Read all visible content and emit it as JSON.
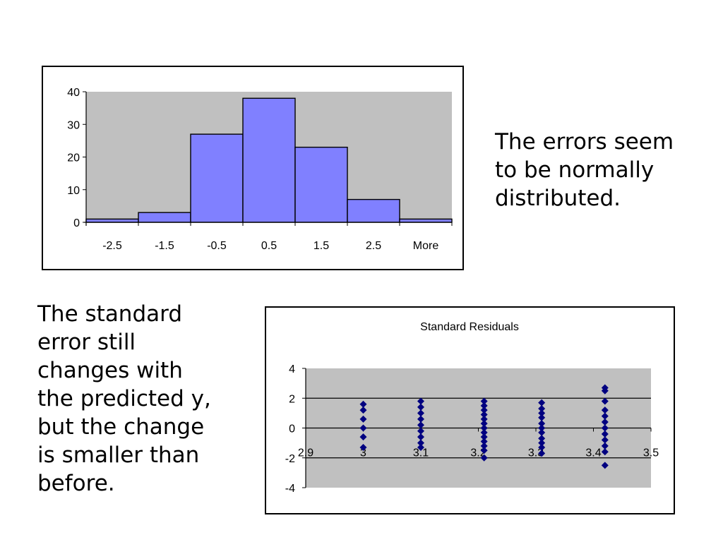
{
  "notes": {
    "right": [
      "The errors seem",
      "to be normally",
      "distributed."
    ],
    "left": [
      "The standard",
      "error still",
      "changes with",
      "the predicted y,",
      "but the change",
      "is smaller than",
      "before."
    ]
  },
  "colors": {
    "plot_area": "#c0c0c0",
    "bar_fill": "#8080ff",
    "marker": "#000080"
  },
  "chart_data": [
    {
      "type": "bar",
      "categories": [
        "-2.5",
        "-1.5",
        "-0.5",
        "0.5",
        "1.5",
        "2.5",
        "More"
      ],
      "values": [
        1,
        3,
        27,
        38,
        23,
        7,
        1
      ],
      "ylim": [
        0,
        40
      ],
      "yticks": [
        0,
        10,
        20,
        30,
        40
      ],
      "grid": false,
      "legend": "none"
    },
    {
      "type": "scatter",
      "title": "Standard Residuals",
      "xlim": [
        2.9,
        3.5
      ],
      "ylim": [
        -4,
        4
      ],
      "xticks": [
        "2.9",
        "3",
        "3.1",
        "3.2",
        "3.3",
        "3.4",
        "3.5"
      ],
      "yticks": [
        4,
        2,
        0,
        -2,
        -4
      ],
      "gridlines_y": [
        2,
        0,
        -2
      ],
      "legend": "none",
      "series": [
        {
          "points": [
            [
              3.0,
              1.6
            ],
            [
              3.0,
              1.2
            ],
            [
              3.0,
              0.6
            ],
            [
              3.0,
              0.0
            ],
            [
              3.0,
              -0.6
            ],
            [
              3.0,
              -1.3
            ],
            [
              3.1,
              1.8
            ],
            [
              3.1,
              1.4
            ],
            [
              3.1,
              1.0
            ],
            [
              3.1,
              0.6
            ],
            [
              3.1,
              0.2
            ],
            [
              3.1,
              -0.2
            ],
            [
              3.1,
              -0.6
            ],
            [
              3.1,
              -1.0
            ],
            [
              3.1,
              -1.3
            ],
            [
              3.21,
              1.8
            ],
            [
              3.21,
              1.5
            ],
            [
              3.21,
              1.2
            ],
            [
              3.21,
              0.9
            ],
            [
              3.21,
              0.6
            ],
            [
              3.21,
              0.3
            ],
            [
              3.21,
              0.0
            ],
            [
              3.21,
              -0.3
            ],
            [
              3.21,
              -0.6
            ],
            [
              3.21,
              -0.9
            ],
            [
              3.21,
              -1.2
            ],
            [
              3.21,
              -1.5
            ],
            [
              3.21,
              -2.0
            ],
            [
              3.31,
              1.7
            ],
            [
              3.31,
              1.3
            ],
            [
              3.31,
              1.0
            ],
            [
              3.31,
              0.7
            ],
            [
              3.31,
              0.3
            ],
            [
              3.31,
              0.0
            ],
            [
              3.31,
              -0.3
            ],
            [
              3.31,
              -0.7
            ],
            [
              3.31,
              -1.0
            ],
            [
              3.31,
              -1.3
            ],
            [
              3.31,
              -1.7
            ],
            [
              3.42,
              2.7
            ],
            [
              3.42,
              2.5
            ],
            [
              3.42,
              1.8
            ],
            [
              3.42,
              1.2
            ],
            [
              3.42,
              0.8
            ],
            [
              3.42,
              0.4
            ],
            [
              3.42,
              0.0
            ],
            [
              3.42,
              -0.4
            ],
            [
              3.42,
              -0.8
            ],
            [
              3.42,
              -1.2
            ],
            [
              3.42,
              -1.6
            ],
            [
              3.42,
              -2.5
            ]
          ]
        }
      ]
    }
  ]
}
